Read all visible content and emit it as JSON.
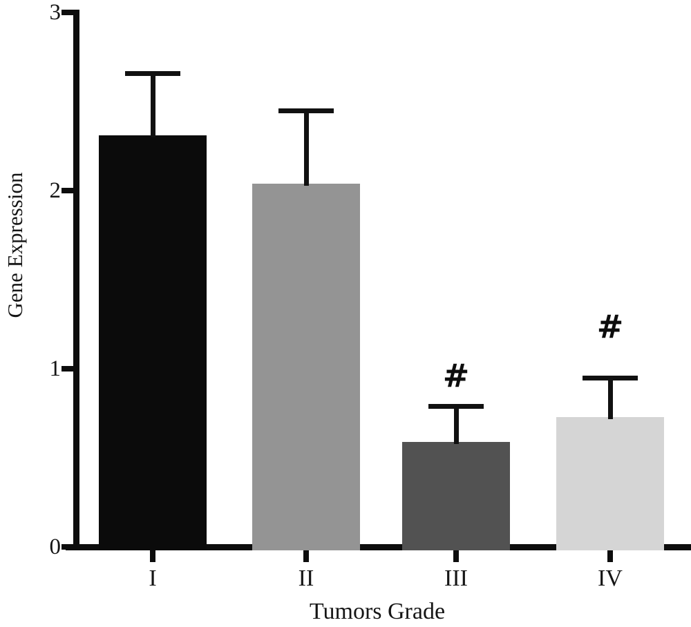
{
  "chart_data": {
    "type": "bar",
    "title": "",
    "xlabel": "Tumors Grade",
    "ylabel": "Gene Expression",
    "categories": [
      "I",
      "II",
      "III",
      "IV"
    ],
    "values": [
      2.31,
      2.04,
      0.59,
      0.73
    ],
    "errors_upper": [
      0.35,
      0.41,
      0.2,
      0.22
    ],
    "error_bar_tops": [
      2.66,
      2.45,
      0.79,
      0.95
    ],
    "bar_colors": [
      "#0b0b0b",
      "#949494",
      "#525252",
      "#d5d5d5"
    ],
    "annotations": [
      {
        "category": "III",
        "category_index": 2,
        "text": "#"
      },
      {
        "category": "IV",
        "category_index": 3,
        "text": "#"
      }
    ],
    "ylim": [
      0,
      3
    ],
    "yticks": [
      0,
      1,
      2,
      3
    ],
    "grid": false,
    "legend_position": "none",
    "axis_color": "#0d0d0d",
    "error_bar_color": "#111111",
    "text_color": "#151515",
    "background": "#ffffff"
  }
}
